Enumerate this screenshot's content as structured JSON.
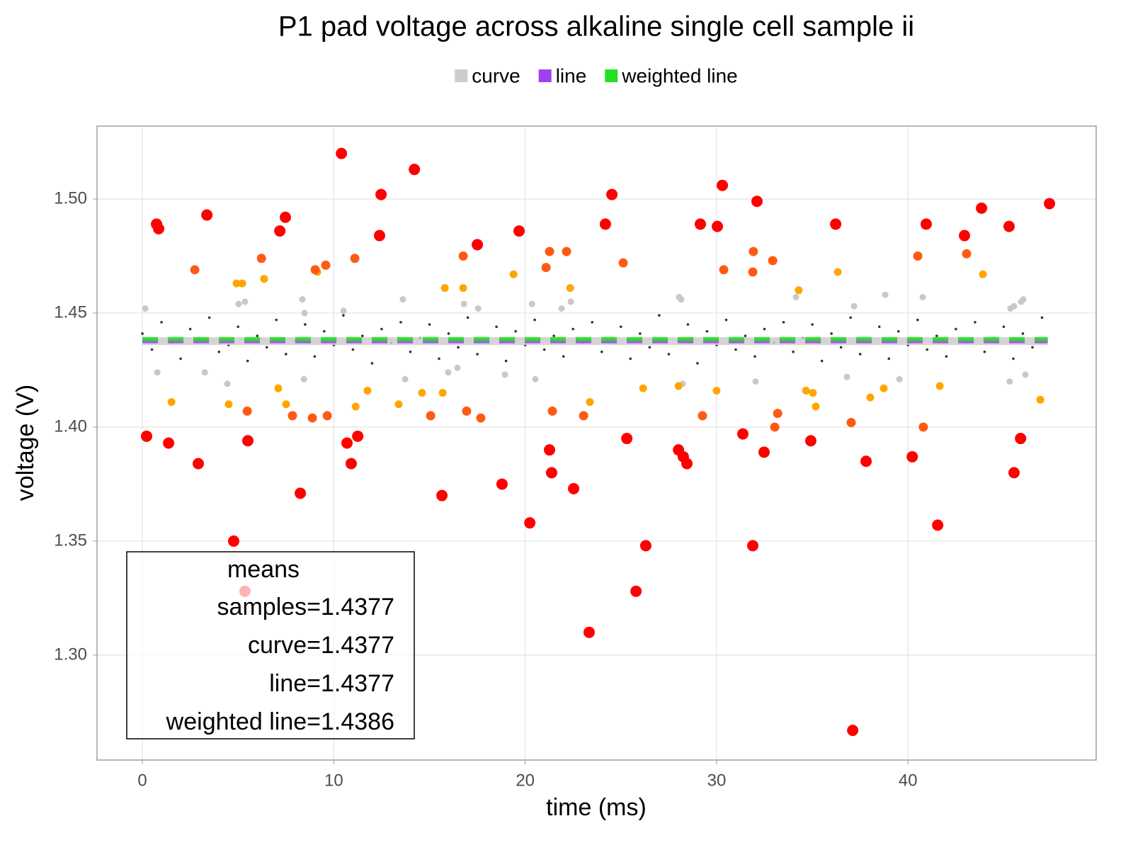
{
  "chart_data": {
    "type": "scatter",
    "title": "P1 pad voltage across alkaline single cell sample ii",
    "x_label": "time (ms)",
    "y_label": "voltage (V)",
    "xlim": [
      -2.37,
      49.83
    ],
    "ylim": [
      1.254,
      1.532
    ],
    "xticks": [
      0,
      10,
      20,
      30,
      40
    ],
    "yticks": [
      {
        "value": 1.3,
        "label": "1.30"
      },
      1.35,
      {
        "value": 1.4,
        "label": "1.40"
      },
      1.45,
      {
        "value": 1.5,
        "label": "1.50"
      }
    ],
    "grid": true,
    "legend": "top",
    "series": [
      {
        "name": "curve",
        "mode": "line",
        "color": "#cccccc",
        "x": [
          0,
          47.3
        ],
        "values": [
          1.4377,
          1.4377
        ]
      },
      {
        "name": "line",
        "mode": "line",
        "dash": true,
        "color": "#a040f0",
        "x": [
          0,
          47.3
        ],
        "values": [
          1.4377,
          1.4377
        ]
      },
      {
        "name": "weighted line",
        "mode": "line",
        "dash": true,
        "color": "#22e022",
        "x": [
          0,
          47.3
        ],
        "values": [
          1.4386,
          1.4386
        ]
      },
      {
        "mode": "points",
        "color": "#ff0000",
        "x": [
          0.22,
          0.74,
          0.85,
          1.37,
          2.92,
          3.37,
          4.77,
          5.51,
          7.18,
          7.47,
          8.25,
          10.4,
          10.69,
          10.91,
          11.25,
          12.47,
          12.39,
          14.21,
          15.65,
          17.5,
          18.79,
          19.68,
          20.24,
          21.27,
          21.38,
          22.53,
          23.34,
          24.19,
          24.53,
          25.31,
          25.79,
          26.3,
          28.01,
          28.26,
          28.45,
          29.15,
          30.04,
          30.3,
          31.37,
          31.89,
          32.11,
          32.48,
          34.92,
          36.22,
          37.11,
          37.81,
          40.22,
          40.95,
          41.55,
          42.95,
          43.84,
          45.28,
          45.54,
          45.88,
          47.39,
          5.36
        ],
        "values": [
          1.396,
          1.489,
          1.487,
          1.393,
          1.384,
          1.493,
          1.35,
          1.394,
          1.486,
          1.492,
          1.371,
          1.52,
          1.393,
          1.384,
          1.396,
          1.502,
          1.484,
          1.513,
          1.37,
          1.48,
          1.375,
          1.486,
          1.358,
          1.39,
          1.38,
          1.373,
          1.31,
          1.489,
          1.502,
          1.395,
          1.328,
          1.348,
          1.39,
          1.387,
          1.384,
          1.489,
          1.488,
          1.506,
          1.397,
          1.348,
          1.499,
          1.389,
          1.394,
          1.489,
          1.267,
          1.385,
          1.387,
          1.489,
          1.357,
          1.484,
          1.496,
          1.488,
          1.38,
          1.395,
          1.498,
          1.328
        ]
      },
      {
        "mode": "points",
        "color": "#ff5a14",
        "x": [
          2.74,
          5.48,
          6.22,
          7.84,
          8.88,
          9.03,
          9.58,
          9.66,
          11.1,
          15.06,
          16.76,
          16.94,
          17.68,
          21.09,
          21.27,
          21.42,
          22.16,
          23.05,
          25.12,
          29.26,
          30.37,
          31.92,
          31.89,
          32.93,
          33.04,
          33.19,
          37.03,
          40.51,
          40.8,
          43.06
        ],
        "values": [
          1.469,
          1.407,
          1.474,
          1.405,
          1.404,
          1.469,
          1.471,
          1.405,
          1.474,
          1.405,
          1.475,
          1.407,
          1.404,
          1.47,
          1.477,
          1.407,
          1.477,
          1.405,
          1.472,
          1.405,
          1.469,
          1.477,
          1.468,
          1.473,
          1.4,
          1.406,
          1.402,
          1.475,
          1.4,
          1.476
        ]
      },
      {
        "mode": "points",
        "color": "#ffa500",
        "x": [
          1.52,
          4.51,
          4.92,
          5.22,
          6.36,
          7.1,
          7.51,
          9.14,
          11.14,
          11.76,
          13.39,
          14.61,
          15.69,
          15.8,
          16.76,
          19.39,
          22.35,
          23.38,
          26.16,
          28.01,
          30.0,
          34.29,
          34.67,
          35.03,
          35.18,
          36.33,
          38.03,
          38.73,
          41.66,
          43.91,
          46.91
        ],
        "values": [
          1.411,
          1.41,
          1.463,
          1.463,
          1.465,
          1.417,
          1.41,
          1.468,
          1.409,
          1.416,
          1.41,
          1.415,
          1.415,
          1.461,
          1.461,
          1.467,
          1.461,
          1.411,
          1.417,
          1.418,
          1.416,
          1.46,
          1.416,
          1.415,
          1.409,
          1.468,
          1.413,
          1.417,
          1.418,
          1.467,
          1.412
        ]
      },
      {
        "mode": "points",
        "color": "#c8c8c8",
        "x": [
          0.15,
          0.78,
          3.26,
          4.44,
          5.03,
          5.36,
          8.36,
          8.44,
          8.47,
          10.51,
          13.61,
          13.73,
          15.98,
          16.46,
          16.8,
          17.54,
          18.94,
          20.35,
          20.53,
          21.9,
          22.38,
          28.04,
          28.15,
          28.23,
          32.04,
          34.15,
          36.81,
          37.18,
          38.81,
          39.55,
          40.77,
          45.35,
          45.54,
          45.31,
          45.91,
          46.02,
          46.13
        ],
        "values": [
          1.452,
          1.424,
          1.424,
          1.419,
          1.454,
          1.455,
          1.456,
          1.421,
          1.45,
          1.451,
          1.456,
          1.421,
          1.424,
          1.426,
          1.454,
          1.452,
          1.423,
          1.454,
          1.421,
          1.452,
          1.455,
          1.457,
          1.456,
          1.419,
          1.42,
          1.457,
          1.422,
          1.453,
          1.458,
          1.421,
          1.457,
          1.452,
          1.453,
          1.42,
          1.455,
          1.456,
          1.423
        ]
      },
      {
        "mode": "points",
        "color": "#333333",
        "x": [
          0,
          0.5,
          1,
          1.5,
          2,
          2.5,
          3,
          3.5,
          4,
          4.5,
          5,
          5.5,
          6,
          6.5,
          7,
          7.5,
          8,
          8.5,
          9,
          9.5,
          10,
          10.5,
          11,
          11.5,
          12,
          12.5,
          13,
          13.5,
          14,
          14.5,
          15,
          15.5,
          16,
          16.5,
          17,
          17.5,
          18,
          18.5,
          19,
          19.5,
          20,
          20.5,
          21,
          21.5,
          22,
          22.5,
          23,
          23.5,
          24,
          24.5,
          25,
          25.5,
          26,
          26.5,
          27,
          27.5,
          28,
          28.5,
          29,
          29.5,
          30,
          30.5,
          31,
          31.5,
          32,
          32.5,
          33,
          33.5,
          34,
          34.5,
          35,
          35.5,
          36,
          36.5,
          37,
          37.5,
          38,
          38.5,
          39,
          39.5,
          40,
          40.5,
          41,
          41.5,
          42,
          42.5,
          43,
          43.5,
          44,
          44.5,
          45,
          45.5,
          46,
          46.5,
          47
        ],
        "values": [
          1.441,
          1.434,
          1.446,
          1.437,
          1.43,
          1.443,
          1.439,
          1.448,
          1.433,
          1.436,
          1.444,
          1.429,
          1.44,
          1.435,
          1.447,
          1.432,
          1.438,
          1.445,
          1.431,
          1.442,
          1.436,
          1.449,
          1.434,
          1.44,
          1.428,
          1.443,
          1.437,
          1.446,
          1.433,
          1.439,
          1.445,
          1.43,
          1.441,
          1.435,
          1.448,
          1.432,
          1.438,
          1.444,
          1.429,
          1.442,
          1.436,
          1.447,
          1.434,
          1.44,
          1.431,
          1.443,
          1.437,
          1.446,
          1.433,
          1.439,
          1.444,
          1.43,
          1.441,
          1.435,
          1.449,
          1.432,
          1.438,
          1.445,
          1.428,
          1.442,
          1.436,
          1.447,
          1.434,
          1.44,
          1.431,
          1.443,
          1.437,
          1.446,
          1.433,
          1.439,
          1.445,
          1.429,
          1.441,
          1.435,
          1.448,
          1.432,
          1.438,
          1.444,
          1.43,
          1.442,
          1.436,
          1.447,
          1.434,
          1.44,
          1.431,
          1.443,
          1.437,
          1.446,
          1.433,
          1.439,
          1.444,
          1.43,
          1.441,
          1.435,
          1.448
        ]
      }
    ],
    "annotation": {
      "title": "means",
      "lines": [
        "samples=1.4377",
        "curve=1.4377",
        "line=1.4377",
        "weighted line=1.4386"
      ]
    }
  }
}
